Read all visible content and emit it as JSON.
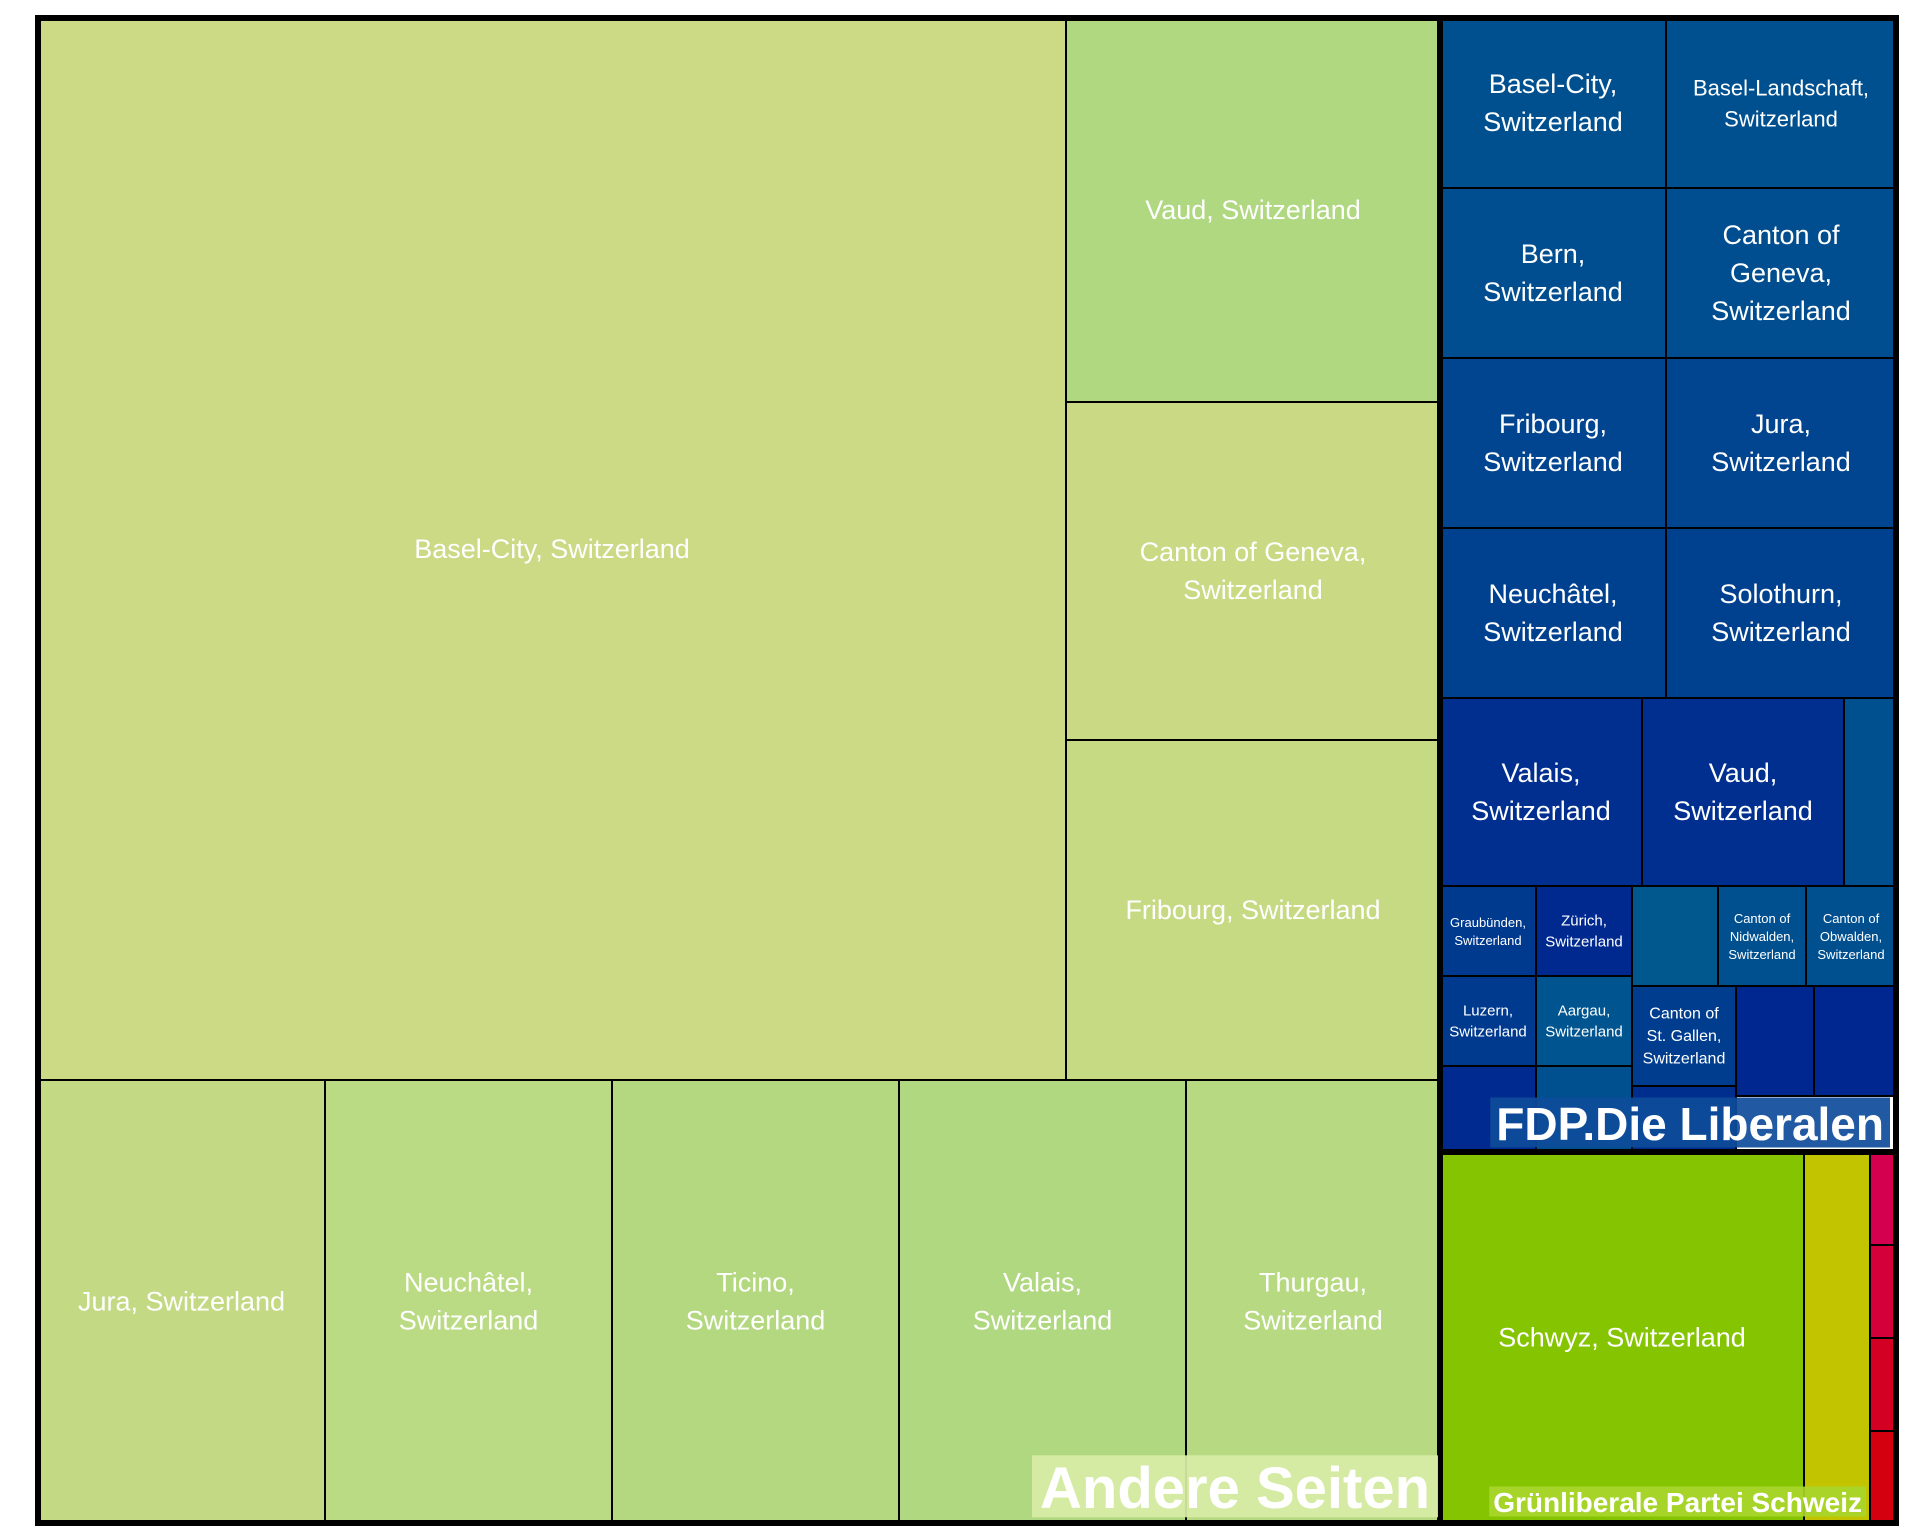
{
  "chart_data": {
    "type": "treemap",
    "title": "",
    "groups": [
      {
        "name": "Andere Seiten",
        "label_bg": "#d8eda6",
        "cells": [
          {
            "label": "Basel-City, Switzerland",
            "value": 232,
            "color": "#ccd985"
          },
          {
            "label": "Vaud, Switzerland",
            "value": 26.5,
            "color": "#afd881"
          },
          {
            "label": "Canton of Geneva, Switzerland",
            "value": 24.0,
            "color": "#c9d984"
          },
          {
            "label": "Fribourg, Switzerland",
            "value": 24.0,
            "color": "#c6da83"
          },
          {
            "label": "Jura, Switzerland",
            "value": 24.0,
            "color": "#c3d983"
          },
          {
            "label": "Neuchâtel, Switzerland",
            "value": 24.0,
            "color": "#badb83"
          },
          {
            "label": "Ticino, Switzerland",
            "value": 24.0,
            "color": "#b3d880"
          },
          {
            "label": "Valais, Switzerland",
            "value": 24.0,
            "color": "#b0d880"
          },
          {
            "label": "Thurgau, Switzerland",
            "value": 21.5,
            "color": "#b6d982"
          }
        ]
      },
      {
        "name": "FDP.Die Liberalen",
        "label_bg": "#0e4c9a",
        "cells": [
          {
            "label": "Basel-City, Switzerland",
            "value": 7.2,
            "color": "#00508f"
          },
          {
            "label": "Basel-Landschaft, Switzerland",
            "value": 7.2,
            "color": "#00508f"
          },
          {
            "label": "Bern, Switzerland",
            "value": 7.2,
            "color": "#004e8f"
          },
          {
            "label": "Canton of Geneva, Switzerland",
            "value": 7.2,
            "color": "#004e8f"
          },
          {
            "label": "Fribourg, Switzerland",
            "value": 7.2,
            "color": "#01448f"
          },
          {
            "label": "Jura, Switzerland",
            "value": 7.2,
            "color": "#01448f"
          },
          {
            "label": "Neuchâtel, Switzerland",
            "value": 7.2,
            "color": "#00418f"
          },
          {
            "label": "Solothurn, Switzerland",
            "value": 7.2,
            "color": "#00418f"
          },
          {
            "label": "Valais, Switzerland",
            "value": 7.2,
            "color": "#002f8f"
          },
          {
            "label": "Vaud, Switzerland",
            "value": 7.2,
            "color": "#002f8f"
          },
          {
            "label": "",
            "value": 1.6,
            "color": "#00508f"
          },
          {
            "label": "Graubünden, Switzerland",
            "value": 1.7,
            "color": "#003a8f"
          },
          {
            "label": "Zürich, Switzerland",
            "value": 1.7,
            "color": "#00298f"
          },
          {
            "label": "",
            "value": 1.6,
            "color": "#00588f"
          },
          {
            "label": "Canton of Nidwalden, Switzerland",
            "value": 1.6,
            "color": "#004f8f"
          },
          {
            "label": "Canton of Obwalden, Switzerland",
            "value": 1.6,
            "color": "#004f8f"
          },
          {
            "label": "Luzern, Switzerland",
            "value": 1.7,
            "color": "#003a8f"
          },
          {
            "label": "Aargau, Switzerland",
            "value": 1.7,
            "color": "#00548f"
          },
          {
            "label": "Canton of St. Gallen, Switzerland",
            "value": 1.6,
            "color": "#003d8f"
          },
          {
            "label": "",
            "value": 1.2,
            "color": "#00268f"
          },
          {
            "label": "",
            "value": 1.2,
            "color": "#00268f"
          },
          {
            "label": "",
            "value": 1.0,
            "color": "#002a8f"
          },
          {
            "label": "",
            "value": 1.0,
            "color": "#004f8f"
          },
          {
            "label": "",
            "value": 0.9,
            "color": "#002e8f"
          }
        ]
      },
      {
        "name": "Grünliberale Partei Schweiz",
        "label_bg": "#a9d52d",
        "cells": [
          {
            "label": "Schwyz, Switzerland",
            "value": 24.2,
            "color": "#84c400"
          },
          {
            "label": "",
            "value": 4.0,
            "color": "#c3c400"
          },
          {
            "label": "",
            "value": 0.35,
            "color": "#d4004f"
          },
          {
            "label": "",
            "value": 0.35,
            "color": "#d4003a"
          },
          {
            "label": "",
            "value": 0.35,
            "color": "#d40024"
          },
          {
            "label": "",
            "value": 0.35,
            "color": "#d40010"
          }
        ]
      }
    ]
  }
}
